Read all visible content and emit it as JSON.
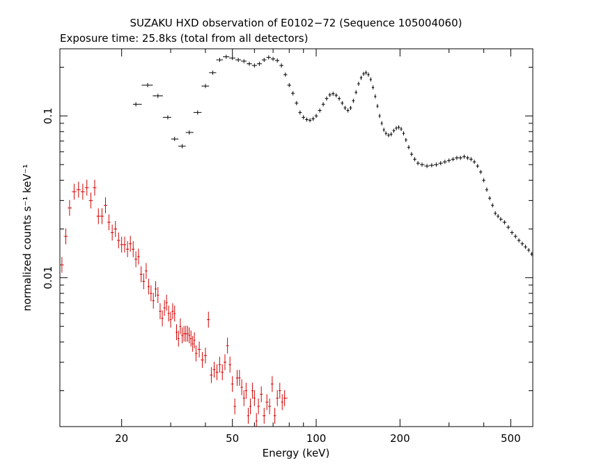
{
  "chart_data": {
    "type": "scatter",
    "title": "SUZAKU HXD observation of E0102−72 (Sequence 105004060)",
    "subtitle": "Exposure time: 25.8ks (total from all detectors)",
    "xlabel": "Energy (keV)",
    "ylabel": "normalized counts s⁻¹ keV⁻¹",
    "x_scale": "log",
    "y_scale": "log",
    "xlim": [
      12,
      600
    ],
    "ylim": [
      0.0012,
      0.26
    ],
    "x_ticks": [
      "20",
      "50",
      "100",
      "200",
      "500"
    ],
    "y_ticks": [
      "0.01",
      "0.1"
    ],
    "grid": false,
    "series": [
      {
        "color": "#000000",
        "points": [
          [
            22.5,
            0.118
          ],
          [
            24.8,
            0.155
          ],
          [
            27.0,
            0.133
          ],
          [
            29.3,
            0.098
          ],
          [
            31.0,
            0.072
          ],
          [
            33.0,
            0.065
          ],
          [
            35.0,
            0.079
          ],
          [
            37.5,
            0.105
          ],
          [
            40.0,
            0.153
          ],
          [
            42.5,
            0.185
          ],
          [
            45.0,
            0.222
          ],
          [
            47.5,
            0.232
          ],
          [
            50.0,
            0.228
          ],
          [
            52.5,
            0.222
          ],
          [
            55.0,
            0.218
          ],
          [
            57.5,
            0.21
          ],
          [
            60.0,
            0.205
          ],
          [
            62.5,
            0.21
          ],
          [
            65.0,
            0.222
          ],
          [
            67.5,
            0.23
          ],
          [
            70.0,
            0.225
          ],
          [
            72.5,
            0.22
          ],
          [
            75.0,
            0.205
          ],
          [
            77.5,
            0.18
          ],
          [
            80.0,
            0.155
          ],
          [
            82.5,
            0.138
          ],
          [
            85.0,
            0.12
          ],
          [
            87.5,
            0.105
          ],
          [
            90.0,
            0.098
          ],
          [
            92.5,
            0.095
          ],
          [
            95.0,
            0.094
          ],
          [
            97.5,
            0.096
          ],
          [
            100,
            0.1
          ],
          [
            103,
            0.108
          ],
          [
            106,
            0.118
          ],
          [
            109,
            0.128
          ],
          [
            112,
            0.135
          ],
          [
            115,
            0.137
          ],
          [
            118,
            0.134
          ],
          [
            121,
            0.128
          ],
          [
            124,
            0.12
          ],
          [
            127,
            0.112
          ],
          [
            130,
            0.108
          ],
          [
            133,
            0.112
          ],
          [
            136,
            0.124
          ],
          [
            139,
            0.14
          ],
          [
            142,
            0.158
          ],
          [
            145,
            0.172
          ],
          [
            148,
            0.182
          ],
          [
            151,
            0.185
          ],
          [
            154,
            0.18
          ],
          [
            157,
            0.168
          ],
          [
            160,
            0.15
          ],
          [
            163,
            0.132
          ],
          [
            166,
            0.115
          ],
          [
            169,
            0.1
          ],
          [
            172,
            0.09
          ],
          [
            175,
            0.082
          ],
          [
            178,
            0.078
          ],
          [
            182,
            0.076
          ],
          [
            186,
            0.077
          ],
          [
            190,
            0.081
          ],
          [
            194,
            0.084
          ],
          [
            198,
            0.085
          ],
          [
            202,
            0.083
          ],
          [
            206,
            0.078
          ],
          [
            210,
            0.071
          ],
          [
            215,
            0.064
          ],
          [
            220,
            0.058
          ],
          [
            226,
            0.054
          ],
          [
            232,
            0.051
          ],
          [
            240,
            0.05
          ],
          [
            250,
            0.049
          ],
          [
            260,
            0.0495
          ],
          [
            270,
            0.05
          ],
          [
            280,
            0.051
          ],
          [
            290,
            0.052
          ],
          [
            300,
            0.053
          ],
          [
            310,
            0.054
          ],
          [
            320,
            0.055
          ],
          [
            330,
            0.055
          ],
          [
            340,
            0.056
          ],
          [
            350,
            0.055
          ],
          [
            360,
            0.054
          ],
          [
            370,
            0.052
          ],
          [
            380,
            0.049
          ],
          [
            390,
            0.045
          ],
          [
            400,
            0.04
          ],
          [
            410,
            0.035
          ],
          [
            420,
            0.031
          ],
          [
            430,
            0.028
          ],
          [
            440,
            0.025
          ],
          [
            450,
            0.024
          ],
          [
            460,
            0.023
          ],
          [
            475,
            0.022
          ],
          [
            490,
            0.0205
          ],
          [
            505,
            0.019
          ],
          [
            520,
            0.018
          ],
          [
            535,
            0.017
          ],
          [
            550,
            0.0162
          ],
          [
            565,
            0.0155
          ],
          [
            580,
            0.0148
          ],
          [
            595,
            0.014
          ]
        ]
      },
      {
        "color": "#d40000",
        "points": [
          [
            12.2,
            0.012
          ],
          [
            12.6,
            0.018
          ],
          [
            13.0,
            0.027
          ],
          [
            13.5,
            0.034
          ],
          [
            14.0,
            0.035
          ],
          [
            14.5,
            0.034
          ],
          [
            15.0,
            0.036
          ],
          [
            15.5,
            0.03
          ],
          [
            16.0,
            0.036
          ],
          [
            16.5,
            0.024
          ],
          [
            17.0,
            0.024
          ],
          [
            17.5,
            0.028
          ],
          [
            18.0,
            0.022
          ],
          [
            18.5,
            0.019
          ],
          [
            19.0,
            0.02
          ],
          [
            19.5,
            0.017
          ],
          [
            20.0,
            0.016
          ],
          [
            20.5,
            0.016
          ],
          [
            21.0,
            0.015
          ],
          [
            21.5,
            0.0162
          ],
          [
            22.0,
            0.015
          ],
          [
            22.5,
            0.013
          ],
          [
            23.0,
            0.0135
          ],
          [
            23.5,
            0.0105
          ],
          [
            24.0,
            0.0095
          ],
          [
            24.5,
            0.011
          ],
          [
            25.0,
            0.0088
          ],
          [
            25.5,
            0.008
          ],
          [
            26.0,
            0.0072
          ],
          [
            26.5,
            0.0085
          ],
          [
            27.0,
            0.0078
          ],
          [
            27.5,
            0.0062
          ],
          [
            28.0,
            0.0056
          ],
          [
            28.5,
            0.0065
          ],
          [
            29.0,
            0.007
          ],
          [
            29.5,
            0.006
          ],
          [
            30.0,
            0.0055
          ],
          [
            30.5,
            0.0062
          ],
          [
            31.0,
            0.006
          ],
          [
            31.5,
            0.0046
          ],
          [
            32.0,
            0.0042
          ],
          [
            32.5,
            0.005
          ],
          [
            33.0,
            0.0044
          ],
          [
            33.5,
            0.0045
          ],
          [
            34.0,
            0.0045
          ],
          [
            34.5,
            0.0045
          ],
          [
            35.0,
            0.0044
          ],
          [
            35.5,
            0.0042
          ],
          [
            36.0,
            0.0039
          ],
          [
            36.5,
            0.0041
          ],
          [
            37.0,
            0.0034
          ],
          [
            38.0,
            0.0036
          ],
          [
            39.0,
            0.0031
          ],
          [
            40.0,
            0.0033
          ],
          [
            41.0,
            0.0055
          ],
          [
            42.0,
            0.0025
          ],
          [
            43.0,
            0.0027
          ],
          [
            44.0,
            0.0026
          ],
          [
            45.0,
            0.0029
          ],
          [
            46.0,
            0.0026
          ],
          [
            47.0,
            0.003
          ],
          [
            48.0,
            0.0038
          ],
          [
            49.0,
            0.0029
          ],
          [
            50.0,
            0.0022
          ],
          [
            51.0,
            0.0016
          ],
          [
            52.0,
            0.0024
          ],
          [
            53.0,
            0.0024
          ],
          [
            54.0,
            0.0021
          ],
          [
            55.0,
            0.0018
          ],
          [
            56.0,
            0.002
          ],
          [
            57.0,
            0.0014
          ],
          [
            58.0,
            0.0016
          ],
          [
            59.0,
            0.002
          ],
          [
            60.0,
            0.0018
          ],
          [
            61.0,
            0.0013
          ],
          [
            62.0,
            0.0016
          ],
          [
            63.5,
            0.0019
          ],
          [
            65.0,
            0.0014
          ],
          [
            66.5,
            0.0017
          ],
          [
            68.0,
            0.0016
          ],
          [
            69.5,
            0.0022
          ],
          [
            71.0,
            0.0014
          ],
          [
            72.5,
            0.0018
          ],
          [
            74.0,
            0.002
          ],
          [
            75.5,
            0.0017
          ],
          [
            77.0,
            0.0018
          ]
        ]
      }
    ]
  }
}
